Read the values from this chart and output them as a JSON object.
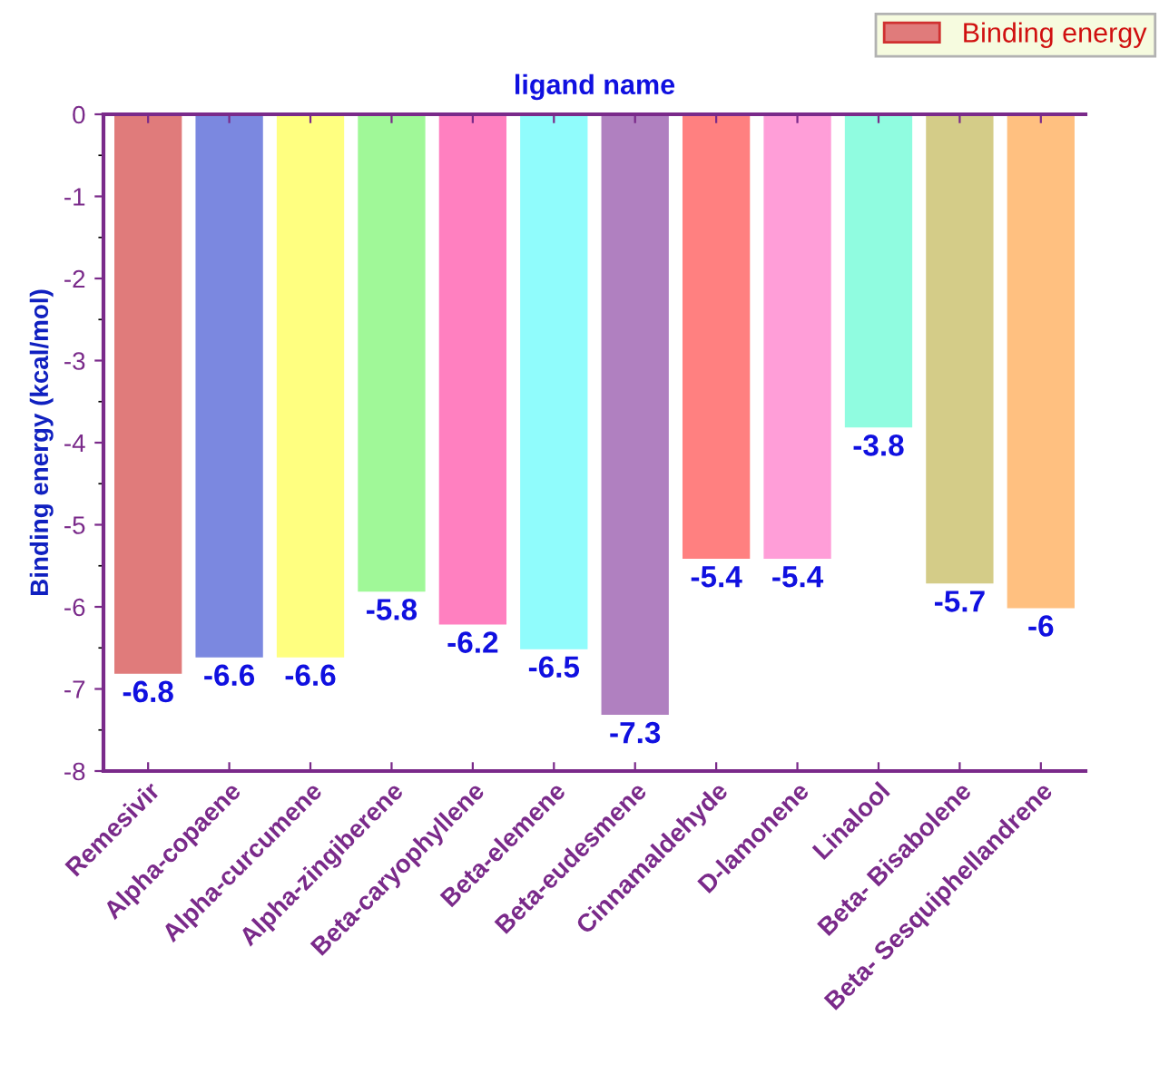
{
  "chart_data": {
    "type": "bar",
    "xlabel": "ligand name",
    "ylabel": "Binding energy (kcal/mol)",
    "categories": [
      "Remesivir",
      "Alpha-copaene",
      "Alpha-curcumene",
      "Alpha-zingiberene",
      "Beta-caryophyllene",
      "Beta-elemene",
      "Beta-eudesmene",
      "Cinnamaldehyde",
      "D-lamonene",
      "Linalool",
      "Beta- Bisabolene",
      "Beta- Sesquiphellandrene"
    ],
    "series": [
      {
        "name": "Binding energy",
        "color": "#e07b7b",
        "colors": [
          "#e07b7b",
          "#7b88e0",
          "#ffff80",
          "#a0f898",
          "#ff80c0",
          "#90fcfc",
          "#b080c0",
          "#ff8080",
          "#ff9ed8",
          "#90fce0",
          "#d4cc88",
          "#ffc080"
        ],
        "values": [
          -6.8,
          -6.6,
          -6.6,
          -5.8,
          -6.2,
          -6.5,
          -7.3,
          -5.4,
          -5.4,
          -3.8,
          -5.7,
          -6
        ]
      }
    ],
    "ylim": [
      -8,
      0
    ],
    "yticks": [
      0,
      -1,
      -2,
      -3,
      -4,
      -5,
      -6,
      -7,
      -8
    ],
    "data_labels": true,
    "grid": false,
    "legend": "top right"
  }
}
